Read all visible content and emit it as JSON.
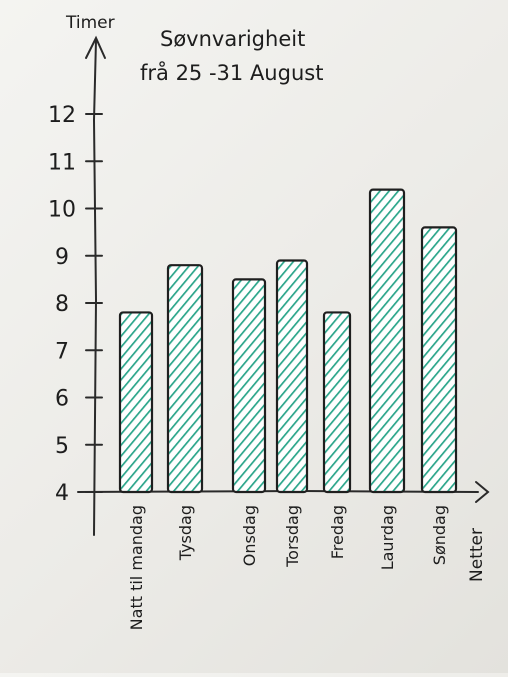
{
  "chart_data": {
    "type": "bar",
    "title": "Søvnvarigheit",
    "subtitle": "frå 25 -31 August",
    "ylabel": "Timer",
    "xlabel": "Netter",
    "categories": [
      "Natt til mandag",
      "Tysdag",
      "Onsdag",
      "Torsdag",
      "Fredag",
      "Laurdag",
      "Søndag"
    ],
    "values": [
      7.8,
      8.8,
      8.5,
      8.9,
      7.8,
      10.4,
      9.6
    ],
    "ylim": [
      4,
      12
    ],
    "yticks": [
      "4",
      "5",
      "6",
      "7",
      "8",
      "9",
      "10",
      "11",
      "12"
    ],
    "grid": false,
    "bar_color": "#2aa58a"
  }
}
